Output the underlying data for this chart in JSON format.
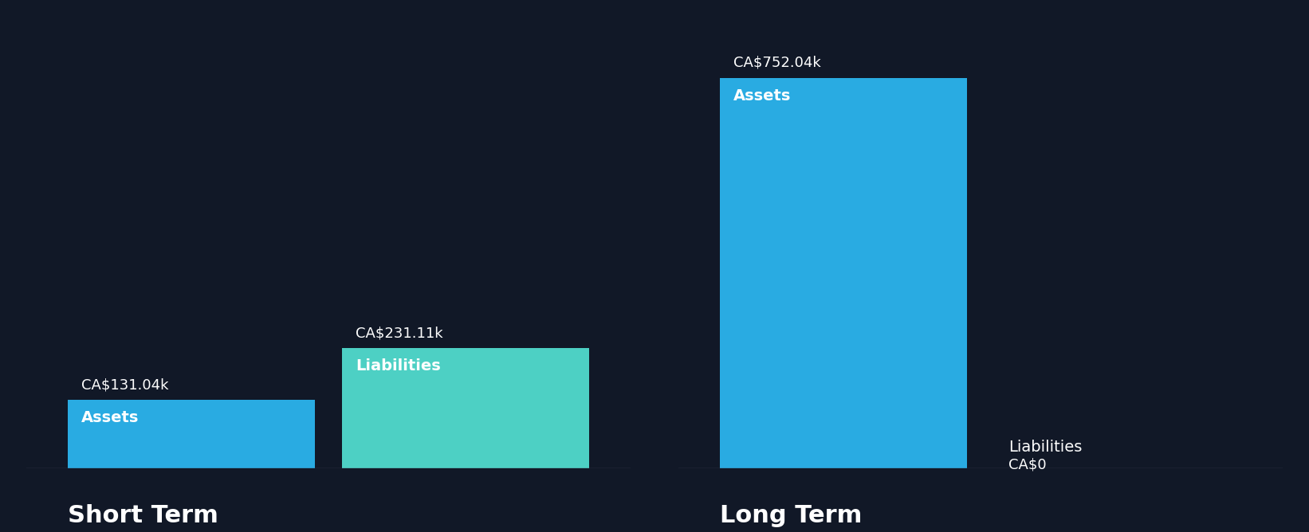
{
  "background_color": "#111827",
  "bar_color_assets": "#29ABE2",
  "bar_color_liabilities": "#4DD0C4",
  "groups": [
    "Short Term",
    "Long Term"
  ],
  "short_term": {
    "assets_value": 131.04,
    "liabilities_value": 231.11,
    "assets_label": "CA$131.04k",
    "liabilities_label": "CA$231.11k"
  },
  "long_term": {
    "assets_value": 752.04,
    "liabilities_value": 0,
    "assets_label": "CA$752.04k",
    "liabilities_label": "CA$0"
  },
  "bar_inner_label_assets": "Assets",
  "bar_inner_label_liabilities": "Liabilities",
  "text_color": "#ffffff",
  "value_label_color": "#cccccc",
  "label_fontsize": 14,
  "value_fontsize": 13,
  "group_label_fontsize": 22,
  "ylim": [
    0,
    820
  ]
}
